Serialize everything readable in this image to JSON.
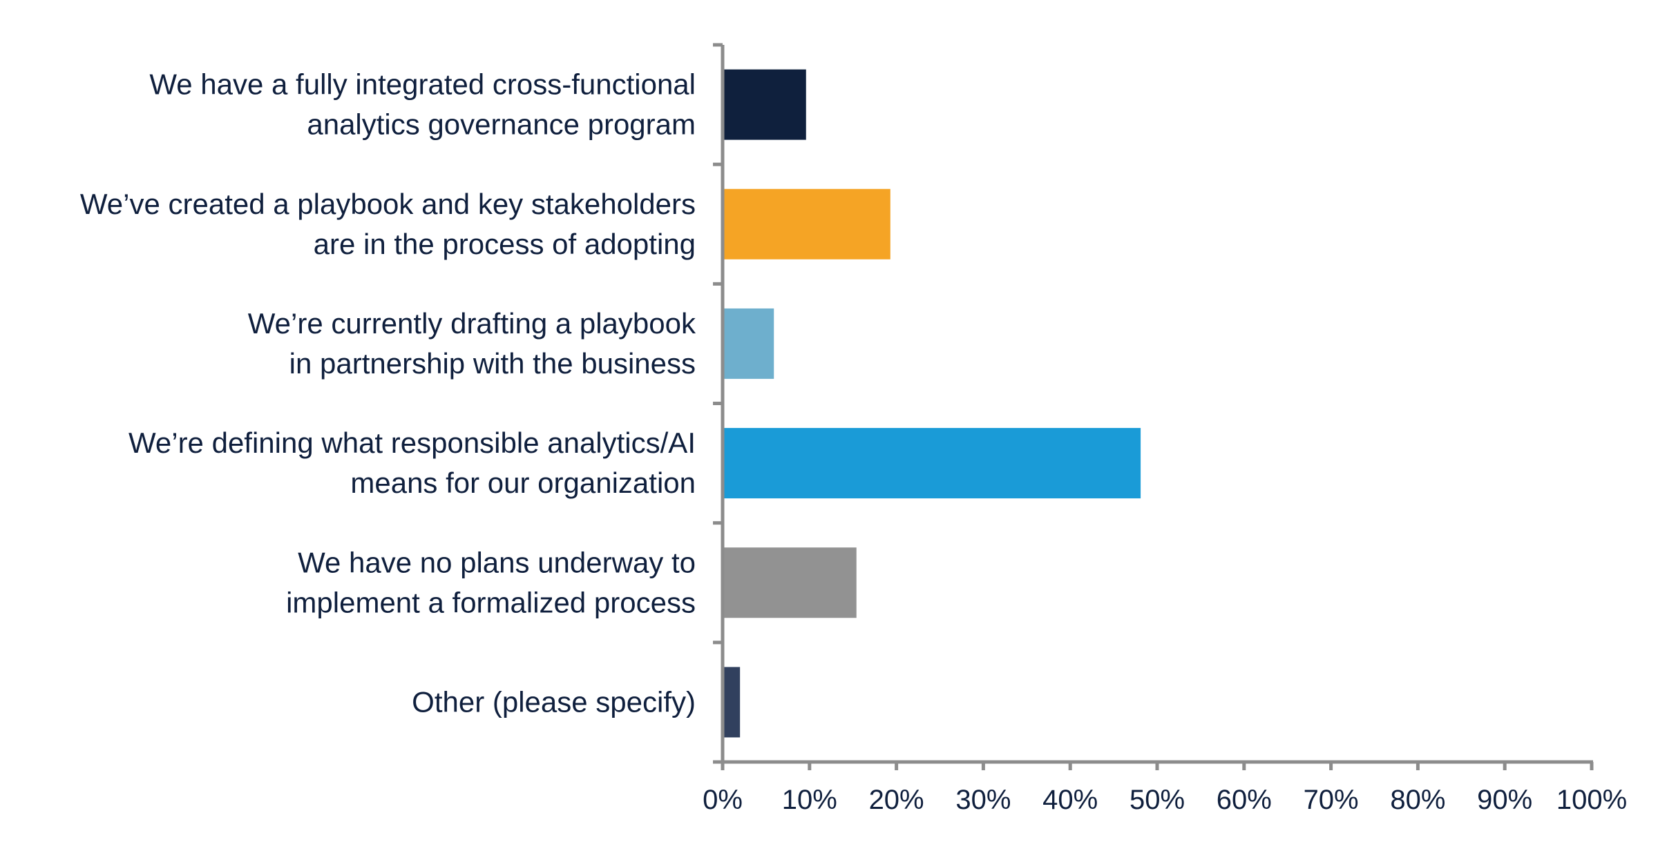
{
  "chart_data": {
    "type": "bar",
    "orientation": "horizontal",
    "title": "",
    "xlabel": "",
    "ylabel": "",
    "xlim": [
      0,
      100
    ],
    "grid": false,
    "categories": [
      [
        "We have a fully integrated cross-functional",
        "analytics governance program"
      ],
      [
        "We’ve created a playbook and key stakeholders",
        "are in the process of adopting"
      ],
      [
        "We’re currently drafting a playbook",
        "in partnership with the business"
      ],
      [
        "We’re defining what responsible analytics/AI",
        "means for our organization"
      ],
      [
        "We have no plans underway to",
        "implement a formalized process"
      ],
      [
        "Other (please specify)"
      ]
    ],
    "values": [
      9.6,
      19.3,
      5.9,
      48.1,
      15.4,
      2.0
    ],
    "colors": [
      "#0f203d",
      "#f5a425",
      "#6eafcd",
      "#1a9bd7",
      "#929292",
      "#31405e"
    ],
    "xticks": [
      "0%",
      "10%",
      "20%",
      "30%",
      "40%",
      "50%",
      "60%",
      "70%",
      "80%",
      "90%",
      "100%"
    ],
    "axis_color": "#8c8c8c"
  }
}
